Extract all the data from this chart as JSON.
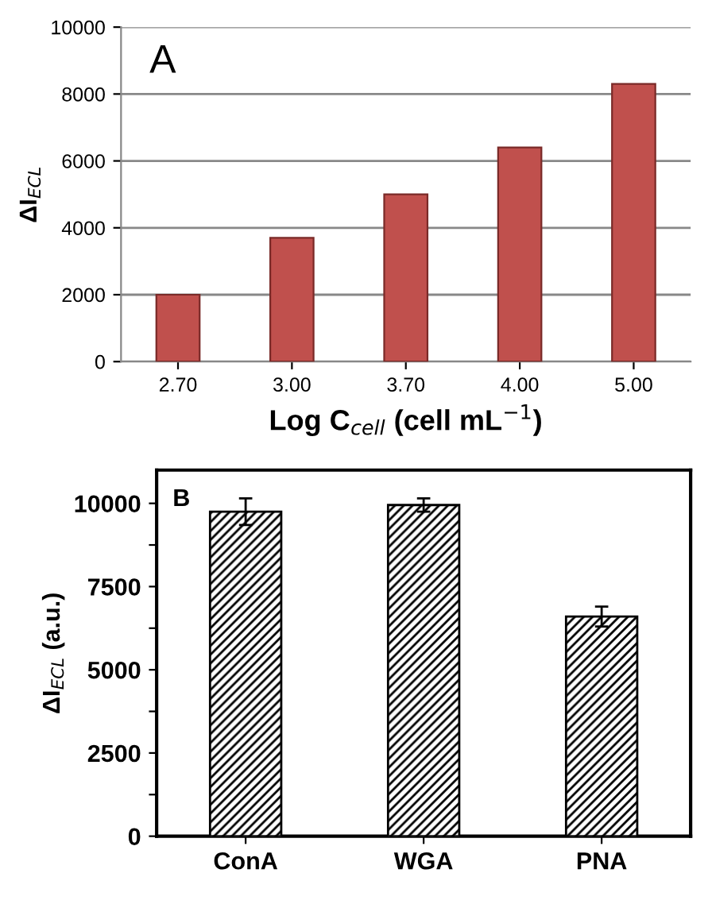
{
  "chart_data": [
    {
      "type": "bar",
      "annotations": [
        "A"
      ],
      "xlabel": "Log C$_{cell}$ (cell mL$^{−1}$)",
      "ylabel": "ΔI$_{ECL}$",
      "categories": [
        "2.70",
        "3.00",
        "3.70",
        "4.00",
        "5.00"
      ],
      "values": [
        2000,
        3700,
        5000,
        6400,
        8300
      ],
      "color": "#c0504d",
      "ylim": [
        0,
        10000
      ],
      "yticks": [
        0,
        2000,
        4000,
        6000,
        8000,
        10000
      ],
      "grid": "y"
    },
    {
      "type": "bar",
      "annotations": [
        "B"
      ],
      "ylabel": "ΔI$_{ECL}$ (a.u.)",
      "categories": [
        "ConA",
        "WGA",
        "PNA"
      ],
      "values": [
        9750,
        9950,
        6600
      ],
      "errors": [
        400,
        200,
        300
      ],
      "color": "#000000",
      "ylim": [
        0,
        11000
      ],
      "yticks": [
        0,
        {
          "value": 1250,
          "label": null
        },
        2500,
        {
          "value": 3750,
          "label": null
        },
        5000,
        {
          "value": 6250,
          "label": null
        },
        7500,
        {
          "value": 8750,
          "label": null
        },
        10000
      ],
      "grid": false
    }
  ]
}
